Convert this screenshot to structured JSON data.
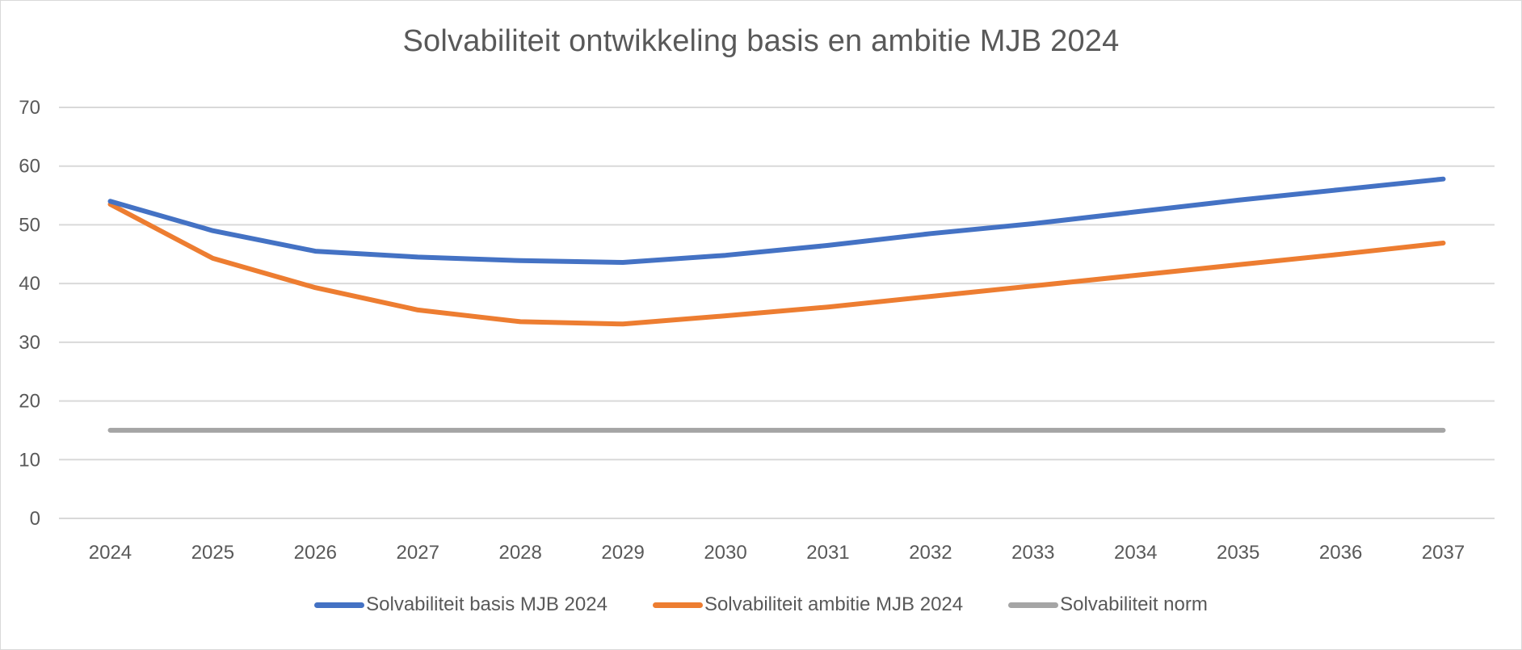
{
  "chart_data": {
    "type": "line",
    "title": "Solvabiliteit ontwikkeling basis en ambitie MJB 2024",
    "xlabel": "",
    "ylabel": "",
    "ylim": [
      0,
      70
    ],
    "yticks": [
      "0",
      "10",
      "20",
      "30",
      "40",
      "50",
      "60",
      "70"
    ],
    "grid": true,
    "legend_position": "bottom",
    "categories": [
      "2024",
      "2025",
      "2026",
      "2027",
      "2028",
      "2029",
      "2030",
      "2031",
      "2032",
      "2033",
      "2034",
      "2035",
      "2036",
      "2037"
    ],
    "series": [
      {
        "name": "Solvabiliteit basis MJB 2024",
        "color": "#4472c4",
        "values": [
          54,
          49,
          45.5,
          44.5,
          43.9,
          43.6,
          44.8,
          46.5,
          48.5,
          50.2,
          52.2,
          54.2,
          56,
          57.8
        ]
      },
      {
        "name": "Solvabiliteit ambitie MJB 2024",
        "color": "#ed7d31",
        "values": [
          53.5,
          44.3,
          39.3,
          35.5,
          33.5,
          33.1,
          34.5,
          36,
          37.8,
          39.6,
          41.4,
          43.2,
          45,
          46.9
        ]
      },
      {
        "name": "Solvabiliteit norm",
        "color": "#a5a5a5",
        "values": [
          15,
          15,
          15,
          15,
          15,
          15,
          15,
          15,
          15,
          15,
          15,
          15,
          15,
          15
        ]
      }
    ]
  }
}
